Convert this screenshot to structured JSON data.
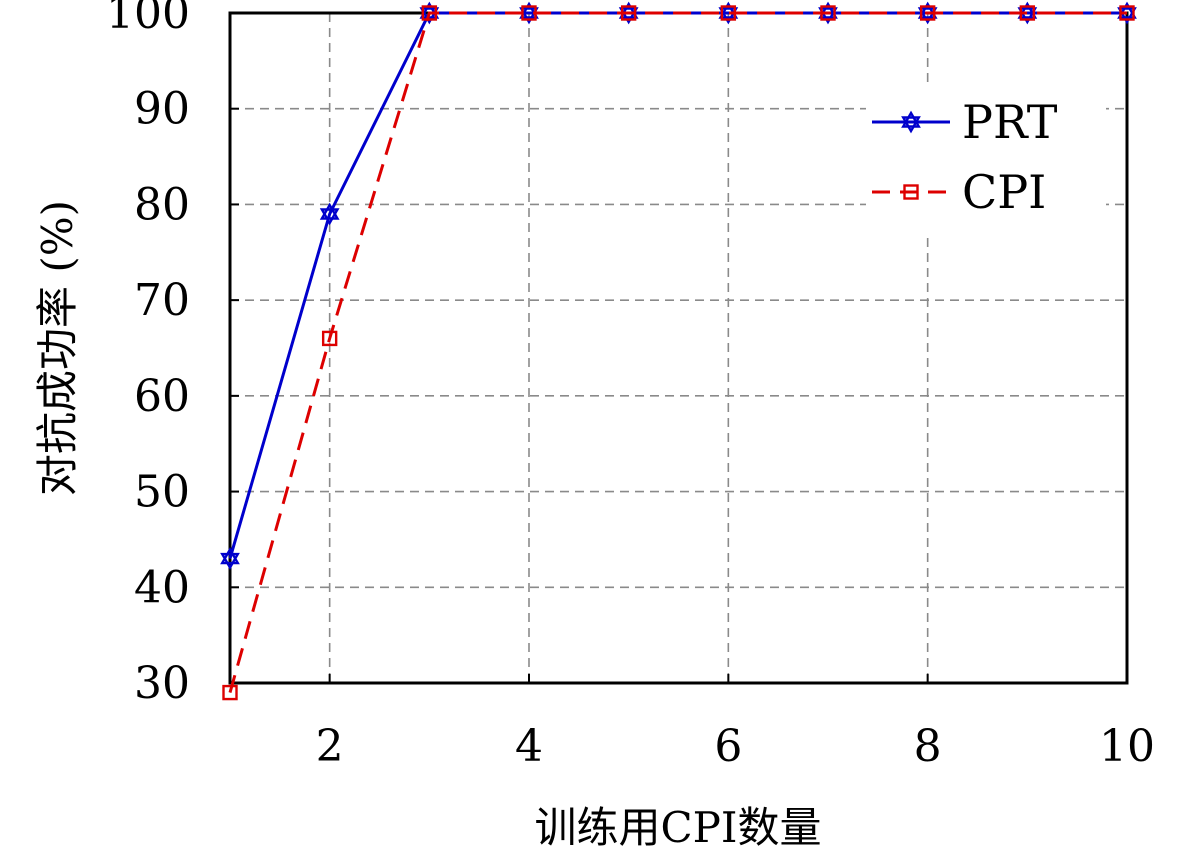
{
  "chart_data": {
    "type": "line",
    "title": "",
    "xlabel": "训练用CPI数量",
    "ylabel": "对抗成功率 (%)",
    "xlim": [
      1,
      10
    ],
    "ylim": [
      30,
      100
    ],
    "x_ticks": [
      2,
      4,
      6,
      8,
      10
    ],
    "y_ticks": [
      30,
      40,
      50,
      60,
      70,
      80,
      90,
      100
    ],
    "grid": true,
    "legend_position": "top-right",
    "x": [
      1,
      2,
      3,
      4,
      5,
      6,
      7,
      8,
      9,
      10
    ],
    "series": [
      {
        "name": "PRT",
        "values": [
          43,
          79,
          100,
          100,
          100,
          100,
          100,
          100,
          100,
          100
        ],
        "color": "#0000cc",
        "line_style": "solid",
        "marker": "hexagram"
      },
      {
        "name": "CPI",
        "values": [
          29,
          66,
          100,
          100,
          100,
          100,
          100,
          100,
          100,
          100
        ],
        "color": "#dd0000",
        "line_style": "dashed",
        "marker": "square"
      }
    ]
  }
}
